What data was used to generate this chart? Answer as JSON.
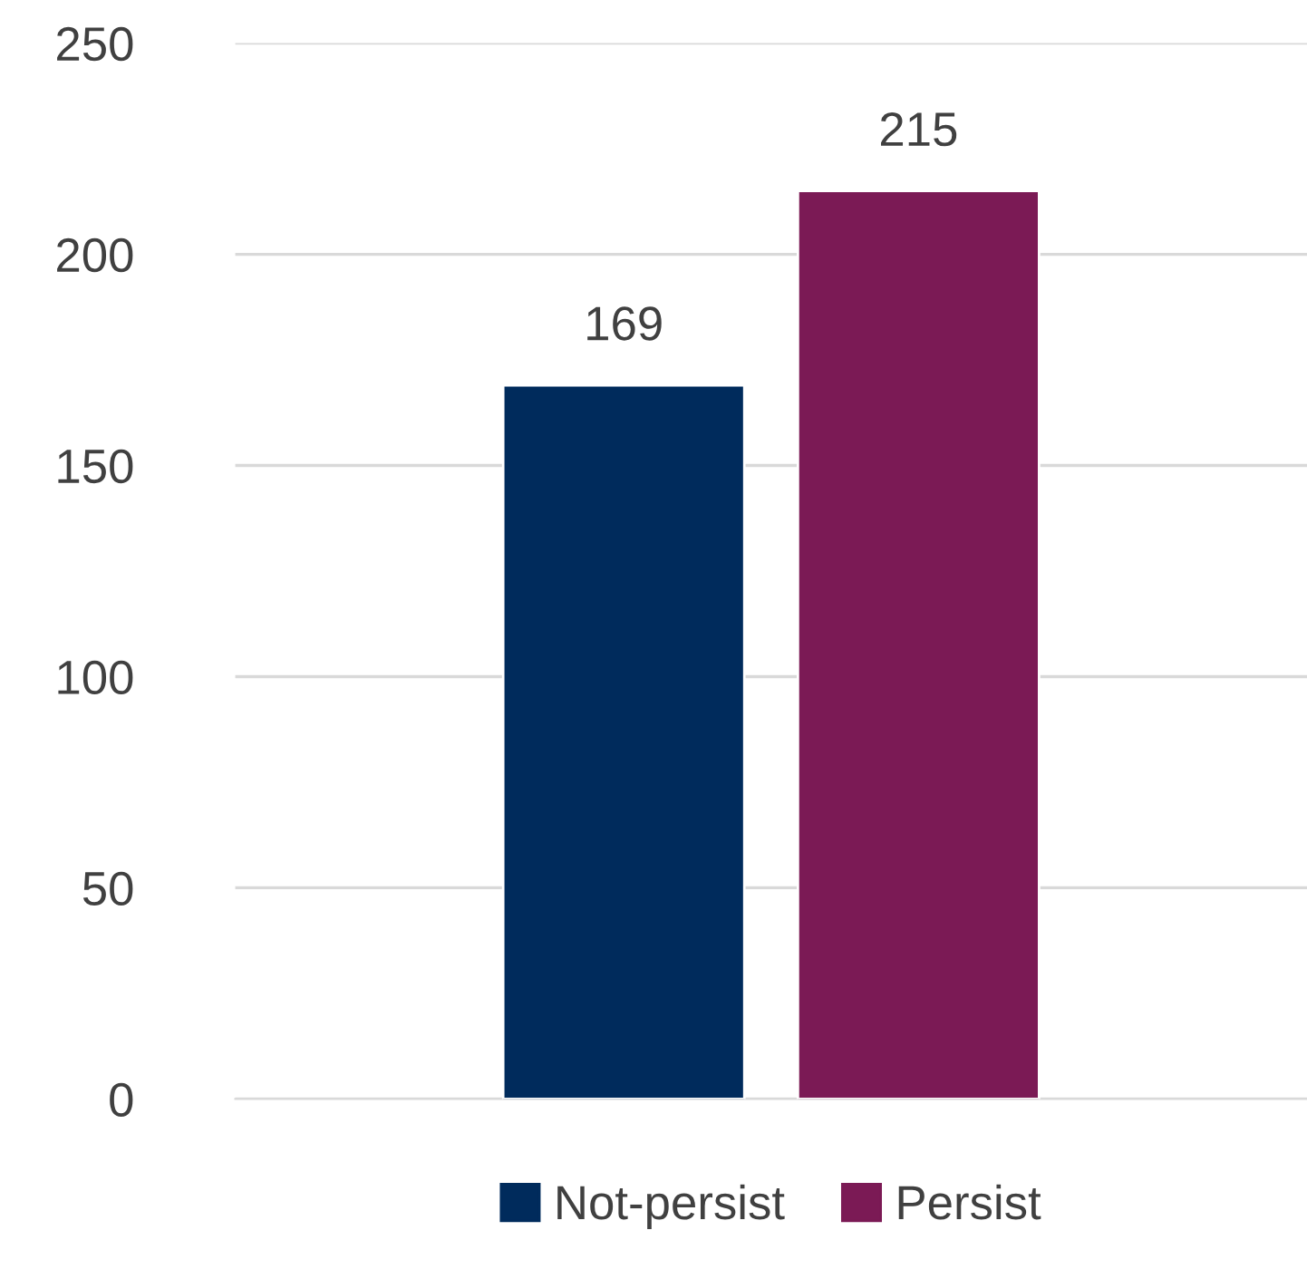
{
  "chart_data": {
    "type": "bar",
    "categories": [
      null
    ],
    "series": [
      {
        "name": "Not-persist",
        "color": "#002b5c",
        "values": [
          169
        ]
      },
      {
        "name": "Persist",
        "color": "#7b1a55",
        "values": [
          215
        ]
      }
    ],
    "ylim": [
      0,
      250
    ],
    "yticks": [
      0,
      50,
      100,
      150,
      200,
      250
    ],
    "grid": "y",
    "legend": "bottom",
    "data_labels": true
  }
}
